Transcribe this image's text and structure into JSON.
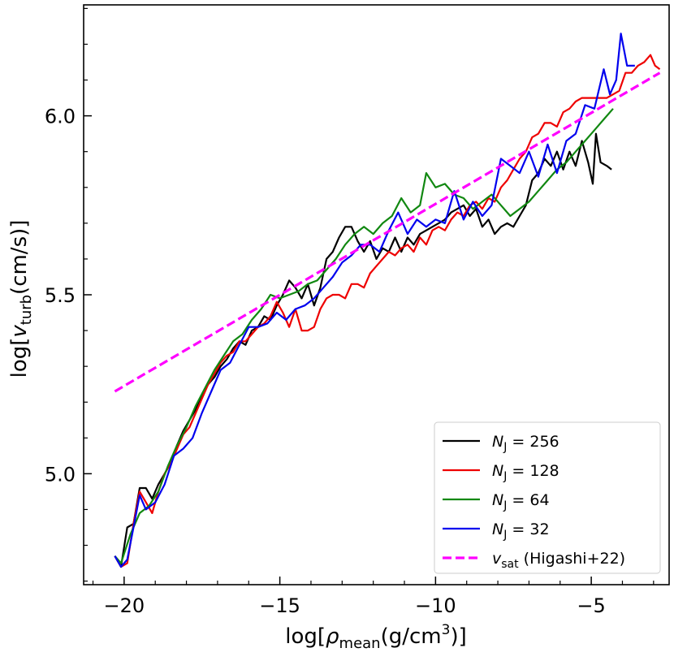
{
  "chart_data": {
    "type": "line",
    "title": "",
    "xlabel": "log[ρmean(g/cm3)]",
    "xlabel_parts": {
      "prefix": "log[",
      "symbol": "ρ",
      "sub": "mean",
      "unit": "(g/cm",
      "sup": "3",
      "close": ")]"
    },
    "ylabel": "log[vturb(cm/s)]",
    "ylabel_parts": {
      "prefix": "log[",
      "symbol": "v",
      "sub": "turb",
      "unit": "(cm/s)]"
    },
    "xlim": [
      -21.3,
      -2.5
    ],
    "ylim": [
      4.69,
      6.31
    ],
    "xticks": [
      -20,
      -15,
      -10,
      -5
    ],
    "xtick_labels": [
      "−20",
      "−15",
      "−10",
      "−5"
    ],
    "yticks": [
      5.0,
      5.5,
      6.0
    ],
    "ytick_labels": [
      "5.0",
      "5.5",
      "6.0"
    ],
    "legend_position": "lower-right",
    "series": [
      {
        "name": "NJ = 256",
        "legend_var": "N",
        "legend_sub": "J",
        "legend_val": " = 256",
        "color": "#000000",
        "dash": false,
        "points": [
          [
            -20.3,
            4.77
          ],
          [
            -20.1,
            4.74
          ],
          [
            -19.9,
            4.85
          ],
          [
            -19.7,
            4.86
          ],
          [
            -19.5,
            4.96
          ],
          [
            -19.3,
            4.96
          ],
          [
            -19.1,
            4.93
          ],
          [
            -18.9,
            4.97
          ],
          [
            -18.7,
            5.0
          ],
          [
            -18.5,
            5.03
          ],
          [
            -18.3,
            5.08
          ],
          [
            -18.1,
            5.12
          ],
          [
            -17.9,
            5.15
          ],
          [
            -17.7,
            5.18
          ],
          [
            -17.5,
            5.22
          ],
          [
            -17.3,
            5.25
          ],
          [
            -17.1,
            5.27
          ],
          [
            -16.9,
            5.3
          ],
          [
            -16.7,
            5.32
          ],
          [
            -16.5,
            5.35
          ],
          [
            -16.3,
            5.37
          ],
          [
            -16.1,
            5.36
          ],
          [
            -15.9,
            5.4
          ],
          [
            -15.7,
            5.41
          ],
          [
            -15.5,
            5.44
          ],
          [
            -15.3,
            5.43
          ],
          [
            -15.1,
            5.47
          ],
          [
            -14.9,
            5.5
          ],
          [
            -14.7,
            5.54
          ],
          [
            -14.5,
            5.52
          ],
          [
            -14.3,
            5.49
          ],
          [
            -14.1,
            5.53
          ],
          [
            -13.9,
            5.47
          ],
          [
            -13.7,
            5.52
          ],
          [
            -13.5,
            5.6
          ],
          [
            -13.3,
            5.62
          ],
          [
            -13.1,
            5.66
          ],
          [
            -12.9,
            5.69
          ],
          [
            -12.7,
            5.69
          ],
          [
            -12.5,
            5.65
          ],
          [
            -12.3,
            5.62
          ],
          [
            -12.1,
            5.65
          ],
          [
            -11.9,
            5.6
          ],
          [
            -11.7,
            5.63
          ],
          [
            -11.5,
            5.62
          ],
          [
            -11.3,
            5.66
          ],
          [
            -11.1,
            5.62
          ],
          [
            -10.9,
            5.66
          ],
          [
            -10.7,
            5.64
          ],
          [
            -10.5,
            5.67
          ],
          [
            -10.3,
            5.68
          ],
          [
            -10.1,
            5.69
          ],
          [
            -9.9,
            5.7
          ],
          [
            -9.7,
            5.71
          ],
          [
            -9.5,
            5.73
          ],
          [
            -9.3,
            5.74
          ],
          [
            -9.1,
            5.75
          ],
          [
            -8.9,
            5.72
          ],
          [
            -8.7,
            5.74
          ],
          [
            -8.5,
            5.69
          ],
          [
            -8.3,
            5.71
          ],
          [
            -8.1,
            5.67
          ],
          [
            -7.9,
            5.69
          ],
          [
            -7.7,
            5.7
          ],
          [
            -7.5,
            5.69
          ],
          [
            -7.3,
            5.72
          ],
          [
            -7.1,
            5.75
          ],
          [
            -6.9,
            5.82
          ],
          [
            -6.7,
            5.84
          ],
          [
            -6.5,
            5.88
          ],
          [
            -6.3,
            5.86
          ],
          [
            -6.1,
            5.9
          ],
          [
            -5.9,
            5.85
          ],
          [
            -5.7,
            5.9
          ],
          [
            -5.5,
            5.86
          ],
          [
            -5.3,
            5.93
          ],
          [
            -5.1,
            5.87
          ],
          [
            -4.95,
            5.81
          ],
          [
            -4.85,
            5.95
          ],
          [
            -4.7,
            5.87
          ],
          [
            -4.5,
            5.86
          ],
          [
            -4.35,
            5.85
          ]
        ]
      },
      {
        "name": "NJ = 128",
        "legend_var": "N",
        "legend_sub": "J",
        "legend_val": " = 128",
        "color": "#ee0000",
        "dash": false,
        "points": [
          [
            -20.3,
            4.77
          ],
          [
            -20.1,
            4.74
          ],
          [
            -19.9,
            4.75
          ],
          [
            -19.7,
            4.86
          ],
          [
            -19.5,
            4.95
          ],
          [
            -19.3,
            4.92
          ],
          [
            -19.1,
            4.89
          ],
          [
            -18.9,
            4.95
          ],
          [
            -18.7,
            5.0
          ],
          [
            -18.5,
            5.03
          ],
          [
            -18.3,
            5.07
          ],
          [
            -18.1,
            5.11
          ],
          [
            -17.9,
            5.13
          ],
          [
            -17.7,
            5.17
          ],
          [
            -17.5,
            5.21
          ],
          [
            -17.3,
            5.25
          ],
          [
            -17.1,
            5.28
          ],
          [
            -16.9,
            5.31
          ],
          [
            -16.7,
            5.33
          ],
          [
            -16.5,
            5.34
          ],
          [
            -16.3,
            5.37
          ],
          [
            -16.1,
            5.37
          ],
          [
            -15.9,
            5.39
          ],
          [
            -15.7,
            5.41
          ],
          [
            -15.5,
            5.42
          ],
          [
            -15.3,
            5.44
          ],
          [
            -15.1,
            5.48
          ],
          [
            -14.9,
            5.45
          ],
          [
            -14.7,
            5.41
          ],
          [
            -14.5,
            5.46
          ],
          [
            -14.3,
            5.4
          ],
          [
            -14.1,
            5.4
          ],
          [
            -13.9,
            5.41
          ],
          [
            -13.7,
            5.46
          ],
          [
            -13.5,
            5.49
          ],
          [
            -13.3,
            5.5
          ],
          [
            -13.1,
            5.5
          ],
          [
            -12.9,
            5.49
          ],
          [
            -12.7,
            5.53
          ],
          [
            -12.5,
            5.53
          ],
          [
            -12.3,
            5.52
          ],
          [
            -12.1,
            5.56
          ],
          [
            -11.9,
            5.58
          ],
          [
            -11.7,
            5.6
          ],
          [
            -11.5,
            5.62
          ],
          [
            -11.3,
            5.61
          ],
          [
            -11.1,
            5.63
          ],
          [
            -10.9,
            5.64
          ],
          [
            -10.7,
            5.62
          ],
          [
            -10.5,
            5.66
          ],
          [
            -10.3,
            5.64
          ],
          [
            -10.1,
            5.68
          ],
          [
            -9.9,
            5.69
          ],
          [
            -9.7,
            5.68
          ],
          [
            -9.5,
            5.71
          ],
          [
            -9.3,
            5.73
          ],
          [
            -9.1,
            5.72
          ],
          [
            -8.9,
            5.75
          ],
          [
            -8.7,
            5.76
          ],
          [
            -8.5,
            5.74
          ],
          [
            -8.3,
            5.77
          ],
          [
            -8.1,
            5.76
          ],
          [
            -7.9,
            5.8
          ],
          [
            -7.7,
            5.82
          ],
          [
            -7.5,
            5.85
          ],
          [
            -7.3,
            5.88
          ],
          [
            -7.1,
            5.9
          ],
          [
            -6.9,
            5.94
          ],
          [
            -6.7,
            5.95
          ],
          [
            -6.5,
            5.98
          ],
          [
            -6.3,
            5.98
          ],
          [
            -6.1,
            5.97
          ],
          [
            -5.9,
            6.01
          ],
          [
            -5.7,
            6.02
          ],
          [
            -5.5,
            6.04
          ],
          [
            -5.3,
            6.05
          ],
          [
            -5.1,
            6.05
          ],
          [
            -4.9,
            6.05
          ],
          [
            -4.7,
            6.05
          ],
          [
            -4.5,
            6.05
          ],
          [
            -4.3,
            6.06
          ],
          [
            -4.1,
            6.07
          ],
          [
            -3.9,
            6.12
          ],
          [
            -3.7,
            6.12
          ],
          [
            -3.5,
            6.14
          ],
          [
            -3.3,
            6.15
          ],
          [
            -3.1,
            6.17
          ],
          [
            -2.95,
            6.14
          ],
          [
            -2.8,
            6.13
          ]
        ]
      },
      {
        "name": "NJ = 64",
        "legend_var": "N",
        "legend_sub": "J",
        "legend_val": " = 64",
        "color": "#118811",
        "dash": false,
        "points": [
          [
            -20.3,
            4.77
          ],
          [
            -20.1,
            4.75
          ],
          [
            -19.8,
            4.83
          ],
          [
            -19.5,
            4.89
          ],
          [
            -19.2,
            4.91
          ],
          [
            -18.9,
            4.95
          ],
          [
            -18.6,
            5.02
          ],
          [
            -18.3,
            5.08
          ],
          [
            -18.0,
            5.13
          ],
          [
            -17.7,
            5.19
          ],
          [
            -17.4,
            5.24
          ],
          [
            -17.1,
            5.29
          ],
          [
            -16.8,
            5.33
          ],
          [
            -16.5,
            5.37
          ],
          [
            -16.2,
            5.39
          ],
          [
            -15.9,
            5.43
          ],
          [
            -15.6,
            5.46
          ],
          [
            -15.3,
            5.5
          ],
          [
            -15.0,
            5.49
          ],
          [
            -14.7,
            5.5
          ],
          [
            -14.4,
            5.51
          ],
          [
            -14.1,
            5.53
          ],
          [
            -13.8,
            5.54
          ],
          [
            -13.5,
            5.57
          ],
          [
            -13.2,
            5.6
          ],
          [
            -12.9,
            5.64
          ],
          [
            -12.6,
            5.67
          ],
          [
            -12.3,
            5.69
          ],
          [
            -12.0,
            5.67
          ],
          [
            -11.7,
            5.7
          ],
          [
            -11.4,
            5.72
          ],
          [
            -11.1,
            5.77
          ],
          [
            -10.8,
            5.73
          ],
          [
            -10.5,
            5.75
          ],
          [
            -10.3,
            5.84
          ],
          [
            -10.0,
            5.8
          ],
          [
            -9.7,
            5.81
          ],
          [
            -9.4,
            5.78
          ],
          [
            -9.1,
            5.77
          ],
          [
            -8.8,
            5.74
          ],
          [
            -8.5,
            5.76
          ],
          [
            -8.2,
            5.78
          ],
          [
            -7.9,
            5.75
          ],
          [
            -7.6,
            5.72
          ],
          [
            -7.3,
            5.74
          ],
          [
            -7.0,
            5.76
          ],
          [
            -6.7,
            5.79
          ],
          [
            -6.4,
            5.82
          ],
          [
            -6.1,
            5.85
          ],
          [
            -5.8,
            5.87
          ],
          [
            -5.5,
            5.9
          ],
          [
            -5.2,
            5.93
          ],
          [
            -4.9,
            5.96
          ],
          [
            -4.6,
            5.99
          ],
          [
            -4.3,
            6.02
          ]
        ]
      },
      {
        "name": "NJ = 32",
        "legend_var": "N",
        "legend_sub": "J",
        "legend_val": " = 32",
        "color": "#0000ee",
        "dash": false,
        "points": [
          [
            -20.3,
            4.77
          ],
          [
            -20.1,
            4.74
          ],
          [
            -19.9,
            4.76
          ],
          [
            -19.7,
            4.85
          ],
          [
            -19.5,
            4.94
          ],
          [
            -19.3,
            4.9
          ],
          [
            -19.0,
            4.92
          ],
          [
            -18.7,
            4.97
          ],
          [
            -18.4,
            5.05
          ],
          [
            -18.1,
            5.07
          ],
          [
            -17.8,
            5.1
          ],
          [
            -17.5,
            5.17
          ],
          [
            -17.2,
            5.23
          ],
          [
            -16.9,
            5.29
          ],
          [
            -16.6,
            5.31
          ],
          [
            -16.3,
            5.36
          ],
          [
            -16.0,
            5.41
          ],
          [
            -15.7,
            5.41
          ],
          [
            -15.4,
            5.42
          ],
          [
            -15.1,
            5.45
          ],
          [
            -14.8,
            5.43
          ],
          [
            -14.5,
            5.46
          ],
          [
            -14.2,
            5.47
          ],
          [
            -13.9,
            5.49
          ],
          [
            -13.6,
            5.52
          ],
          [
            -13.3,
            5.55
          ],
          [
            -13.0,
            5.59
          ],
          [
            -12.7,
            5.61
          ],
          [
            -12.4,
            5.64
          ],
          [
            -12.1,
            5.64
          ],
          [
            -11.8,
            5.62
          ],
          [
            -11.5,
            5.68
          ],
          [
            -11.2,
            5.73
          ],
          [
            -10.9,
            5.67
          ],
          [
            -10.6,
            5.71
          ],
          [
            -10.3,
            5.69
          ],
          [
            -10.0,
            5.71
          ],
          [
            -9.7,
            5.7
          ],
          [
            -9.4,
            5.79
          ],
          [
            -9.1,
            5.71
          ],
          [
            -8.8,
            5.76
          ],
          [
            -8.5,
            5.72
          ],
          [
            -8.2,
            5.75
          ],
          [
            -7.9,
            5.88
          ],
          [
            -7.6,
            5.86
          ],
          [
            -7.3,
            5.84
          ],
          [
            -7.0,
            5.9
          ],
          [
            -6.7,
            5.83
          ],
          [
            -6.4,
            5.92
          ],
          [
            -6.1,
            5.84
          ],
          [
            -5.8,
            5.93
          ],
          [
            -5.5,
            5.95
          ],
          [
            -5.2,
            6.03
          ],
          [
            -4.9,
            6.02
          ],
          [
            -4.6,
            6.13
          ],
          [
            -4.4,
            6.06
          ],
          [
            -4.2,
            6.1
          ],
          [
            -4.05,
            6.23
          ],
          [
            -3.85,
            6.14
          ],
          [
            -3.6,
            6.14
          ]
        ]
      },
      {
        "name": "vsat (Higashi+22)",
        "legend_var": "v",
        "legend_sub": "sat",
        "legend_val": " (Higashi+22)",
        "color": "#ff00ff",
        "dash": true,
        "points": [
          [
            -20.3,
            5.23
          ],
          [
            -2.8,
            6.12
          ]
        ]
      }
    ]
  }
}
